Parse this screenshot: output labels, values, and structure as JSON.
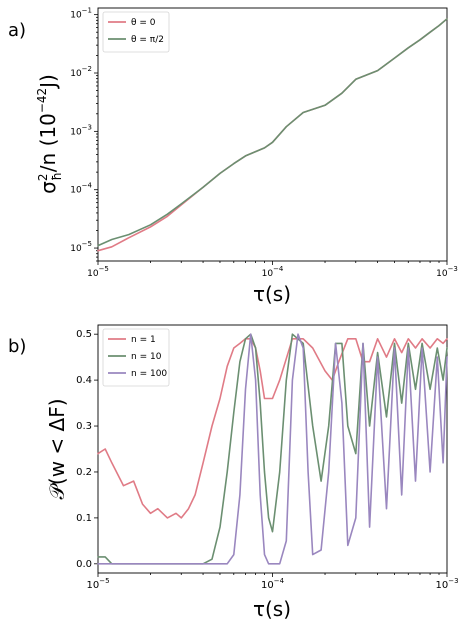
{
  "chart_data": [
    {
      "type": "line",
      "panel_label": "a)",
      "xlabel": "τ(s)",
      "ylabel_parts": {
        "sym": "σ",
        "sup": "2",
        "sub": "ħ",
        "rest": "/n  (10",
        "exp": "−42",
        "unit": "J)"
      },
      "x_scale": "log",
      "y_scale": "log",
      "xlim": [
        1e-05,
        0.001
      ],
      "ylim": [
        6e-06,
        0.13
      ],
      "x_ticks": [
        1e-05,
        0.0001,
        0.001
      ],
      "x_tick_labels": [
        {
          "base": "10",
          "exp": "−5"
        },
        {
          "base": "10",
          "exp": "−4"
        },
        {
          "base": "10",
          "exp": "−3"
        }
      ],
      "y_ticks": [
        1e-05,
        0.0001,
        0.001,
        0.01,
        0.1
      ],
      "y_tick_labels": [
        {
          "base": "10",
          "exp": "−5"
        },
        {
          "base": "10",
          "exp": "−4"
        },
        {
          "base": "10",
          "exp": "−3"
        },
        {
          "base": "10",
          "exp": "−2"
        },
        {
          "base": "10",
          "exp": "−1"
        }
      ],
      "legend_position": "top-left",
      "series": [
        {
          "name": "θ = 0",
          "color": "#e07b86",
          "x": [
            1e-05,
            1.2e-05,
            1.5e-05,
            2e-05,
            2.5e-05,
            3e-05,
            4e-05,
            5e-05,
            6e-05,
            7e-05,
            8e-05,
            9e-05,
            0.0001,
            0.00012,
            0.00015,
            0.0002,
            0.00025,
            0.0003,
            0.0004,
            0.0005,
            0.0006,
            0.0007,
            0.0008,
            0.0009,
            0.001
          ],
          "y": [
            9e-06,
            1.05e-05,
            1.5e-05,
            2.3e-05,
            3.5e-05,
            5.5e-05,
            0.00011,
            0.00019,
            0.00028,
            0.00038,
            0.00045,
            0.00052,
            0.00065,
            0.0012,
            0.0021,
            0.0028,
            0.0045,
            0.0078,
            0.011,
            0.018,
            0.027,
            0.037,
            0.05,
            0.065,
            0.085
          ]
        },
        {
          "name": "θ = π/2",
          "color": "#6b8f71",
          "x": [
            1e-05,
            1.2e-05,
            1.5e-05,
            2e-05,
            2.5e-05,
            3e-05,
            4e-05,
            5e-05,
            6e-05,
            7e-05,
            8e-05,
            9e-05,
            0.0001,
            0.00012,
            0.00015,
            0.0002,
            0.00025,
            0.0003,
            0.0004,
            0.0005,
            0.0006,
            0.0007,
            0.0008,
            0.0009,
            0.001
          ],
          "y": [
            1.1e-05,
            1.4e-05,
            1.7e-05,
            2.5e-05,
            3.8e-05,
            5.7e-05,
            0.00011,
            0.00019,
            0.00028,
            0.00038,
            0.00045,
            0.00052,
            0.00065,
            0.0012,
            0.0021,
            0.0028,
            0.0045,
            0.0078,
            0.011,
            0.018,
            0.027,
            0.037,
            0.05,
            0.065,
            0.085
          ]
        }
      ]
    },
    {
      "type": "line",
      "panel_label": "b)",
      "xlabel": "τ(s)",
      "ylabel": "𝒫(w < ΔF)",
      "x_scale": "log",
      "y_scale": "linear",
      "xlim": [
        1e-05,
        0.001
      ],
      "ylim": [
        -0.02,
        0.52
      ],
      "x_ticks": [
        1e-05,
        0.0001,
        0.001
      ],
      "x_tick_labels": [
        {
          "base": "10",
          "exp": "−5"
        },
        {
          "base": "10",
          "exp": "−4"
        },
        {
          "base": "10",
          "exp": "−3"
        }
      ],
      "y_ticks": [
        0.0,
        0.1,
        0.2,
        0.3,
        0.4,
        0.5
      ],
      "y_tick_labels": [
        "0.0",
        "0.1",
        "0.2",
        "0.3",
        "0.4",
        "0.5"
      ],
      "legend_position": "top-left",
      "series": [
        {
          "name": "n = 1",
          "color": "#e07b86",
          "x": [
            1e-05,
            1.1e-05,
            1.2e-05,
            1.4e-05,
            1.6e-05,
            1.8e-05,
            2e-05,
            2.2e-05,
            2.5e-05,
            2.8e-05,
            3e-05,
            3.3e-05,
            3.6e-05,
            4e-05,
            4.5e-05,
            5e-05,
            5.5e-05,
            6e-05,
            6.5e-05,
            7e-05,
            7.5e-05,
            8e-05,
            8.5e-05,
            9e-05,
            0.0001,
            0.00011,
            0.00013,
            0.00015,
            0.00017,
            0.0002,
            0.00022,
            0.00024,
            0.00027,
            0.0003,
            0.00033,
            0.00036,
            0.0004,
            0.00045,
            0.0005,
            0.00055,
            0.0006,
            0.00066,
            0.00072,
            0.0008,
            0.00088,
            0.00095,
            0.001
          ],
          "y": [
            0.24,
            0.25,
            0.22,
            0.17,
            0.18,
            0.13,
            0.11,
            0.12,
            0.1,
            0.11,
            0.1,
            0.12,
            0.15,
            0.22,
            0.3,
            0.36,
            0.43,
            0.47,
            0.48,
            0.49,
            0.49,
            0.47,
            0.42,
            0.36,
            0.36,
            0.4,
            0.49,
            0.49,
            0.47,
            0.42,
            0.4,
            0.44,
            0.49,
            0.49,
            0.44,
            0.44,
            0.49,
            0.45,
            0.49,
            0.46,
            0.49,
            0.47,
            0.49,
            0.47,
            0.49,
            0.48,
            0.49
          ]
        },
        {
          "name": "n = 10",
          "color": "#6b8f71",
          "x": [
            1e-05,
            1.1e-05,
            1.2e-05,
            1.4e-05,
            1.6e-05,
            2e-05,
            3e-05,
            4e-05,
            4.5e-05,
            5e-05,
            5.5e-05,
            6e-05,
            6.5e-05,
            7e-05,
            7.5e-05,
            8e-05,
            8.5e-05,
            9e-05,
            9.5e-05,
            0.0001,
            0.00011,
            0.00012,
            0.00013,
            0.00015,
            0.00017,
            0.00019,
            0.00021,
            0.00023,
            0.00025,
            0.00027,
            0.0003,
            0.00033,
            0.00036,
            0.0004,
            0.00045,
            0.0005,
            0.00055,
            0.0006,
            0.00066,
            0.00072,
            0.0008,
            0.00088,
            0.00095,
            0.001
          ],
          "y": [
            0.015,
            0.015,
            0.0,
            0.0,
            0.0,
            0.0,
            0.0,
            0.0,
            0.01,
            0.08,
            0.2,
            0.33,
            0.44,
            0.49,
            0.5,
            0.47,
            0.35,
            0.2,
            0.1,
            0.07,
            0.2,
            0.4,
            0.5,
            0.48,
            0.3,
            0.18,
            0.3,
            0.48,
            0.48,
            0.3,
            0.24,
            0.48,
            0.3,
            0.46,
            0.32,
            0.48,
            0.35,
            0.48,
            0.38,
            0.48,
            0.38,
            0.47,
            0.4,
            0.47
          ]
        },
        {
          "name": "n = 100",
          "color": "#9a87bf",
          "x": [
            1e-05,
            1.2e-05,
            1.5e-05,
            2e-05,
            3e-05,
            4e-05,
            5e-05,
            5.5e-05,
            6e-05,
            6.5e-05,
            7e-05,
            7.5e-05,
            8e-05,
            8.5e-05,
            9e-05,
            9.5e-05,
            0.0001,
            0.00011,
            0.00012,
            0.00013,
            0.00014,
            0.00015,
            0.00016,
            0.00017,
            0.00019,
            0.00021,
            0.00023,
            0.00025,
            0.00027,
            0.0003,
            0.00033,
            0.00036,
            0.0004,
            0.00045,
            0.0005,
            0.00055,
            0.0006,
            0.00066,
            0.00072,
            0.0008,
            0.00088,
            0.00095,
            0.001
          ],
          "y": [
            0.0,
            0.0,
            0.0,
            0.0,
            0.0,
            0.0,
            0.0,
            0.0,
            0.02,
            0.15,
            0.38,
            0.5,
            0.4,
            0.15,
            0.02,
            0.0,
            0.0,
            0.0,
            0.05,
            0.4,
            0.5,
            0.47,
            0.2,
            0.02,
            0.03,
            0.2,
            0.48,
            0.35,
            0.04,
            0.1,
            0.48,
            0.08,
            0.45,
            0.12,
            0.47,
            0.15,
            0.47,
            0.18,
            0.47,
            0.2,
            0.45,
            0.22,
            0.45
          ]
        }
      ]
    }
  ]
}
